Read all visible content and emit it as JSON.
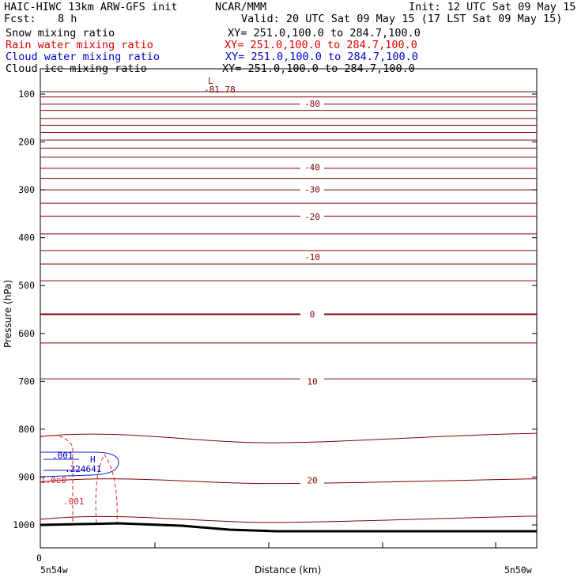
{
  "header": {
    "model": "HAIC-HIWC 13km ARW-GFS init",
    "org": "NCAR/MMM",
    "init": "Init: 12 UTC Sat 09 May 15",
    "fcst_label": "Fcst:",
    "fcst_value": "8 h",
    "valid": "Valid: 20 UTC Sat 09 May 15 (17 LST Sat 09 May 15)"
  },
  "fields": [
    {
      "name": "Snow mixing ratio",
      "xy": "XY= 251.0,100.0 to 284.7,100.0",
      "color": "#000000"
    },
    {
      "name": "Rain water mixing ratio",
      "xy": "XY= 251.0,100.0 to 284.7,100.0",
      "color": "#dd0000"
    },
    {
      "name": "Cloud water mixing ratio",
      "xy": "XY= 251.0,100.0 to 284.7,100.0",
      "color": "#0000cc"
    },
    {
      "name": "Cloud ice mixing ratio",
      "xy": "XY= 251.0,100.0 to 284.7,100.0",
      "color": "#000000"
    }
  ],
  "chart_data": {
    "type": "contour",
    "ylabel": "Pressure (hPa)",
    "xlabel": "Distance (km)",
    "ylim": [
      1050,
      70
    ],
    "y_ticks": [
      "100",
      "200",
      "300",
      "400",
      "500",
      "600",
      "700",
      "800",
      "900",
      "1000"
    ],
    "x_tick_label": "0",
    "x_left_label": "5n54w",
    "x_right_label": "5n50w",
    "contour_color": "#800000",
    "terrain_color": "#000000",
    "isotherm_labels": [
      {
        "text": "-80",
        "p": 120
      },
      {
        "text": "-40",
        "p": 253
      },
      {
        "text": "-30",
        "p": 299
      },
      {
        "text": "-20",
        "p": 356
      },
      {
        "text": "-10",
        "p": 440
      },
      {
        "text": "0",
        "p": 560
      },
      {
        "text": "10",
        "p": 700
      },
      {
        "text": "20",
        "p": 907
      }
    ],
    "min_marker": {
      "symbol": "L",
      "value": "-81.78"
    },
    "max_marker": {
      "symbol": "H",
      "value": ".224641"
    },
    "cloud_labels": [
      ".001",
      ".001",
      "1.0e0"
    ]
  }
}
